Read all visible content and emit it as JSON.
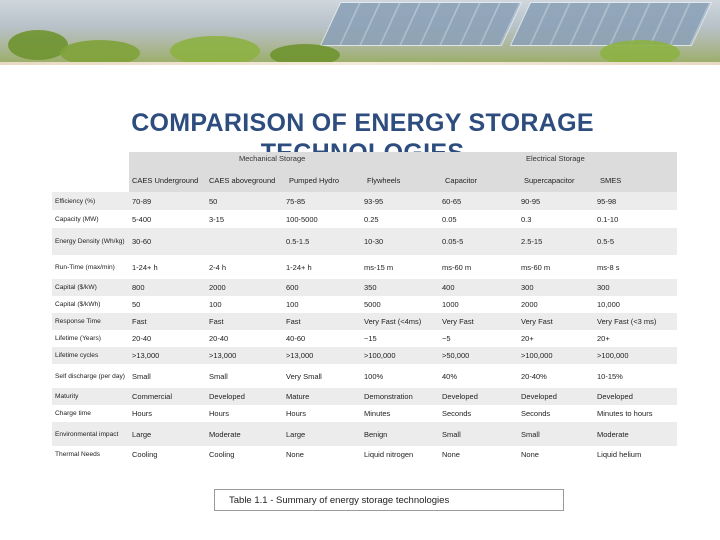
{
  "title": "COMPARISON OF ENERGY STORAGE TECHNOLOGIES",
  "group_headers": {
    "mechanical": "Mechanical Storage",
    "electrical": "Electrical Storage"
  },
  "columns": [
    "CAES Underground",
    "CAES aboveground",
    "Pumped Hydro",
    "Flywheels",
    "Capacitor",
    "Supercapacitor",
    "SMES"
  ],
  "rows": [
    {
      "label": "Efficiency (%)",
      "cells": [
        "70-89",
        "50",
        "75-85",
        "93-95",
        "60-65",
        "90-95",
        "95-98"
      ]
    },
    {
      "label": "Capacity (MW)",
      "cells": [
        "5-400",
        "3-15",
        "100-5000",
        "0.25",
        "0.05",
        "0.3",
        "0.1-10"
      ]
    },
    {
      "label": "Energy Density (Wh/kg)",
      "cells": [
        "30-60",
        "",
        "0.5-1.5",
        "10-30",
        "0.05-5",
        "2.5-15",
        "0.5-5"
      ]
    },
    {
      "label": "Run-Time (max/min)",
      "cells": [
        "1-24+ h",
        "2-4 h",
        "1-24+ h",
        "ms-15 m",
        "ms-60 m",
        "ms-60 m",
        "ms-8 s"
      ]
    },
    {
      "label": "Capital ($/kW)",
      "cells": [
        "800",
        "2000",
        "600",
        "350",
        "400",
        "300",
        "300"
      ]
    },
    {
      "label": "Capital ($/kWh)",
      "cells": [
        "50",
        "100",
        "100",
        "5000",
        "1000",
        "2000",
        "10,000"
      ]
    },
    {
      "label": "Response Time",
      "cells": [
        "Fast",
        "Fast",
        "Fast",
        "Very Fast (<4ms)",
        "Very Fast",
        "Very Fast",
        "Very Fast (<3 ms)"
      ]
    },
    {
      "label": "Lifetime (Years)",
      "cells": [
        "20-40",
        "20-40",
        "40-60",
        "~15",
        "~5",
        "20+",
        "20+"
      ]
    },
    {
      "label": "Lifetime cycles",
      "cells": [
        ">13,000",
        ">13,000",
        ">13,000",
        ">100,000",
        ">50,000",
        ">100,000",
        ">100,000"
      ]
    },
    {
      "label": "Self discharge (per day)",
      "cells": [
        "Small",
        "Small",
        "Very Small",
        "100%",
        "40%",
        "20-40%",
        "10-15%"
      ]
    },
    {
      "label": "Maturity",
      "cells": [
        "Commercial",
        "Developed",
        "Mature",
        "Demonstration",
        "Developed",
        "Developed",
        "Developed"
      ]
    },
    {
      "label": "Charge time",
      "cells": [
        "Hours",
        "Hours",
        "Hours",
        "Minutes",
        "Seconds",
        "Seconds",
        "Minutes to hours"
      ]
    },
    {
      "label": "Environmental impact",
      "cells": [
        "Large",
        "Moderate",
        "Large",
        "Benign",
        "Small",
        "Small",
        "Moderate"
      ]
    },
    {
      "label": "Thermal Needs",
      "cells": [
        "Cooling",
        "Cooling",
        "None",
        "Liquid nitrogen",
        "None",
        "None",
        "Liquid helium"
      ]
    }
  ],
  "row_heights": [
    18,
    18,
    27,
    24,
    17,
    17,
    17,
    17,
    17,
    24,
    17,
    17,
    24,
    17
  ],
  "caption": "Table 1.1 - Summary of energy storage technologies",
  "colors": {
    "title": "#2e4d7f",
    "header_band": "#dcdcdc",
    "alt_row": "#ececec"
  }
}
